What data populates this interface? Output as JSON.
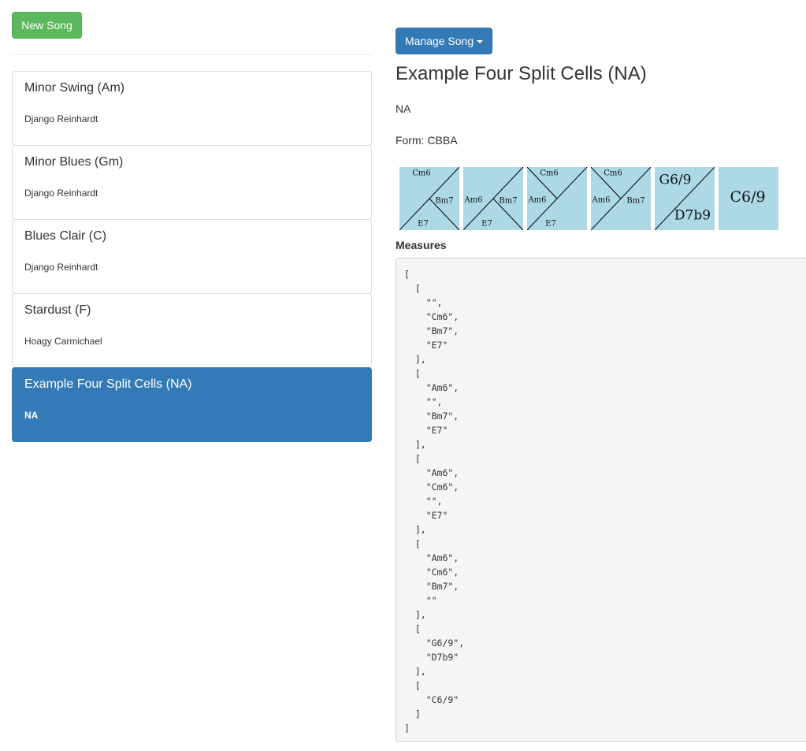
{
  "buttons": {
    "new_song": "New Song",
    "manage_song": "Manage Song"
  },
  "songs": [
    {
      "title": "Minor Swing (Am)",
      "artist": "Django Reinhardt"
    },
    {
      "title": "Minor Blues (Gm)",
      "artist": "Django Reinhardt"
    },
    {
      "title": "Blues Clair (C)",
      "artist": "Django Reinhardt"
    },
    {
      "title": "Stardust (F)",
      "artist": "Hoagy Carmichael"
    },
    {
      "title": "Example Four Split Cells (NA)",
      "artist": "NA",
      "active": true
    }
  ],
  "song": {
    "title": "Example Four Split Cells (NA)",
    "artist": "NA",
    "form": "Form: CBBA",
    "cells": [
      {
        "top": "Cm6",
        "right": "Bm7",
        "bottom": "E7"
      },
      {
        "left": "Am6",
        "right": "Bm7",
        "bottom": "E7"
      },
      {
        "left": "Am6",
        "top": "Cm6",
        "bottom": "E7"
      },
      {
        "left": "Am6",
        "top": "Cm6",
        "right": "Bm7"
      },
      {
        "top_left": "G6/9",
        "bottom_right": "D7b9"
      },
      {
        "center": "C6/9"
      }
    ],
    "measures_label": "Measures",
    "measures_text": "[\n  [\n    \"\",\n    \"Cm6\",\n    \"Bm7\",\n    \"E7\"\n  ],\n  [\n    \"Am6\",\n    \"\",\n    \"Bm7\",\n    \"E7\"\n  ],\n  [\n    \"Am6\",\n    \"Cm6\",\n    \"\",\n    \"E7\"\n  ],\n  [\n    \"Am6\",\n    \"Cm6\",\n    \"Bm7\",\n    \"\"\n  ],\n  [\n    \"G6/9\",\n    \"D7b9\"\n  ],\n  [\n    \"C6/9\"\n  ]\n]"
  }
}
